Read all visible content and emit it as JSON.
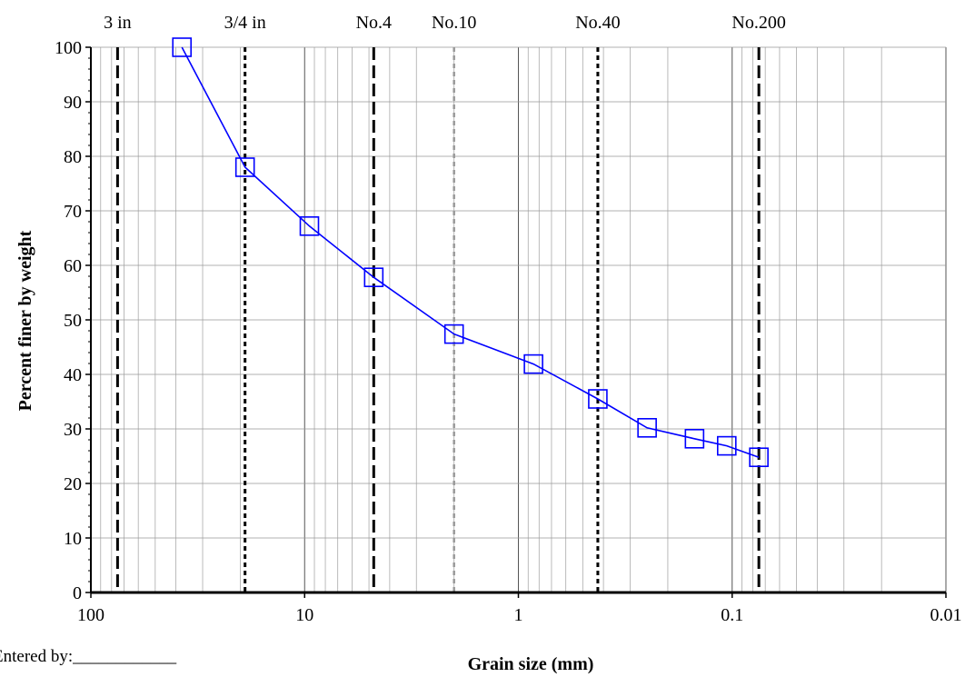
{
  "entered_by": "Entered by:____________",
  "chart_data": {
    "type": "line",
    "xlabel": "Grain size (mm)",
    "ylabel": "Percent finer by weight",
    "x_scale": "log",
    "x_reversed": true,
    "xlim": [
      100,
      0.01
    ],
    "ylim": [
      0,
      100
    ],
    "x_ticks": [
      {
        "value": 100,
        "label": "100"
      },
      {
        "value": 10,
        "label": "10"
      },
      {
        "value": 1,
        "label": "1"
      },
      {
        "value": 0.1,
        "label": "0.1"
      },
      {
        "value": 0.01,
        "label": "0.01"
      }
    ],
    "y_ticks": [
      0,
      10,
      20,
      30,
      40,
      50,
      60,
      70,
      80,
      90,
      100
    ],
    "grid": true,
    "sieves": [
      {
        "label": "3 in",
        "size": 75,
        "style": "dashed"
      },
      {
        "label": "3/4 in",
        "size": 19,
        "style": "dotted"
      },
      {
        "label": "No.4",
        "size": 4.75,
        "style": "dashed"
      },
      {
        "label": "No.10",
        "size": 2,
        "style": "gray-dotted"
      },
      {
        "label": "No.40",
        "size": 0.425,
        "style": "dotted"
      },
      {
        "label": "No.200",
        "size": 0.075,
        "style": "dashed"
      }
    ],
    "series": [
      {
        "color": "#0000ff",
        "marker": "square",
        "x": [
          37.5,
          19,
          9.5,
          4.75,
          2,
          0.85,
          0.425,
          0.25,
          0.15,
          0.106,
          0.075
        ],
        "y": [
          100,
          78,
          67.2,
          57.8,
          47.4,
          41.9,
          35.5,
          30.2,
          28.2,
          26.9,
          24.8
        ]
      }
    ]
  }
}
